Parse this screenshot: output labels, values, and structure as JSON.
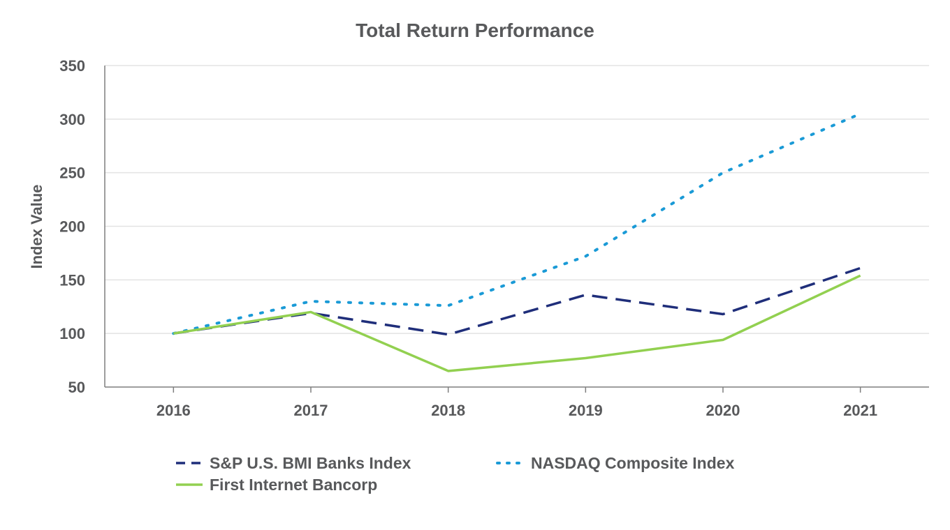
{
  "chart_data": {
    "type": "line",
    "title": "Total Return Performance",
    "xlabel": "",
    "ylabel": "Index Value",
    "categories": [
      "2016",
      "2017",
      "2018",
      "2019",
      "2020",
      "2021"
    ],
    "ylim": [
      50,
      350
    ],
    "yticks": [
      50,
      100,
      150,
      200,
      250,
      300,
      350
    ],
    "grid": true,
    "legend_position": "bottom",
    "series": [
      {
        "name": "S&P U.S. BMI Banks Index",
        "values": [
          100,
          119,
          99,
          136,
          118,
          161
        ],
        "color": "#1f2e7a",
        "style": "dashed"
      },
      {
        "name": "NASDAQ Composite Index",
        "values": [
          100,
          130,
          126,
          172,
          250,
          305
        ],
        "color": "#1a9ad6",
        "style": "dotted"
      },
      {
        "name": "First Internet Bancorp",
        "values": [
          100,
          120,
          65,
          77,
          94,
          154
        ],
        "color": "#92d050",
        "style": "solid"
      }
    ]
  }
}
